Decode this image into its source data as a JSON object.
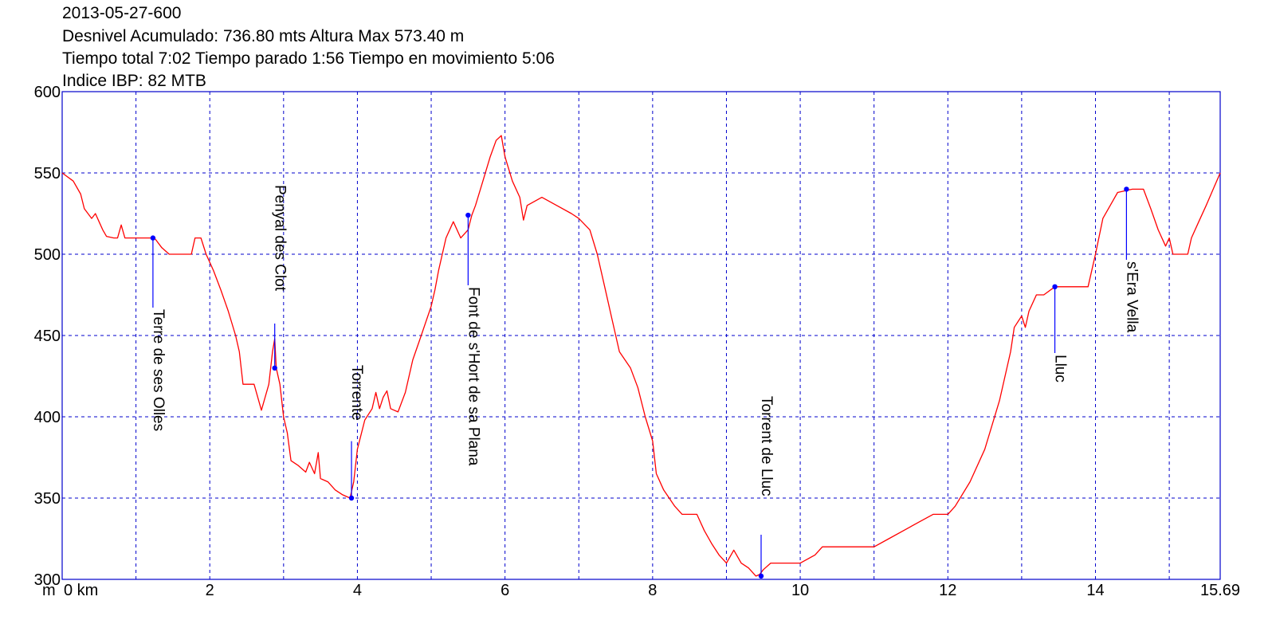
{
  "header": {
    "line1": "2013-05-27-600",
    "line2": "Desnivel Acumulado: 736.80 mts  Altura Max 573.40 m",
    "line3": "Tiempo total 7:02 Tiempo parado 1:56 Tiempo en movimiento 5:06",
    "line4": "Indice IBP: 82 MTB"
  },
  "colors": {
    "frame": "#0000cc",
    "grid": "#0000cc",
    "profile": "#ff0000",
    "marker": "#0000ff"
  },
  "chart_data": {
    "type": "line",
    "title": "",
    "xlabel": "km",
    "ylabel": "m",
    "xlim": [
      0,
      15.69
    ],
    "ylim": [
      300,
      600
    ],
    "x_ticks": [
      {
        "v": 0,
        "label": "0 km"
      },
      {
        "v": 2,
        "label": "2"
      },
      {
        "v": 4,
        "label": "4"
      },
      {
        "v": 6,
        "label": "6"
      },
      {
        "v": 8,
        "label": "8"
      },
      {
        "v": 10,
        "label": "10"
      },
      {
        "v": 12,
        "label": "12"
      },
      {
        "v": 14,
        "label": "14"
      },
      {
        "v": 15.69,
        "label": "15.69"
      }
    ],
    "y_ticks": [
      {
        "v": 300,
        "label": "300"
      },
      {
        "v": 350,
        "label": "350"
      },
      {
        "v": 400,
        "label": "400"
      },
      {
        "v": 450,
        "label": "450"
      },
      {
        "v": 500,
        "label": "500"
      },
      {
        "v": 550,
        "label": "550"
      },
      {
        "v": 600,
        "label": "600"
      }
    ],
    "x_grid": [
      1,
      2,
      3,
      4,
      5,
      6,
      7,
      8,
      9,
      10,
      11,
      12,
      13,
      14,
      15
    ],
    "y_grid": [
      350,
      400,
      450,
      500,
      550
    ],
    "grid": true,
    "series": [
      {
        "values": [
          [
            0.0,
            550
          ],
          [
            0.15,
            545
          ],
          [
            0.25,
            537
          ],
          [
            0.3,
            528
          ],
          [
            0.4,
            522
          ],
          [
            0.45,
            525
          ],
          [
            0.5,
            520
          ],
          [
            0.55,
            515
          ],
          [
            0.6,
            511
          ],
          [
            0.7,
            510
          ],
          [
            0.75,
            510
          ],
          [
            0.8,
            518
          ],
          [
            0.85,
            510
          ],
          [
            1.0,
            510
          ],
          [
            1.25,
            510
          ],
          [
            1.35,
            504
          ],
          [
            1.45,
            500
          ],
          [
            1.75,
            500
          ],
          [
            1.8,
            510
          ],
          [
            1.88,
            510
          ],
          [
            1.95,
            500
          ],
          [
            2.05,
            490
          ],
          [
            2.15,
            478
          ],
          [
            2.25,
            465
          ],
          [
            2.35,
            450
          ],
          [
            2.4,
            440
          ],
          [
            2.45,
            420
          ],
          [
            2.6,
            420
          ],
          [
            2.7,
            404
          ],
          [
            2.8,
            420
          ],
          [
            2.85,
            440
          ],
          [
            2.88,
            448
          ],
          [
            2.9,
            430
          ],
          [
            2.95,
            420
          ],
          [
            3.0,
            400
          ],
          [
            3.05,
            390
          ],
          [
            3.1,
            373
          ],
          [
            3.2,
            370
          ],
          [
            3.3,
            366
          ],
          [
            3.35,
            372
          ],
          [
            3.42,
            365
          ],
          [
            3.47,
            378
          ],
          [
            3.5,
            362
          ],
          [
            3.6,
            360
          ],
          [
            3.7,
            355
          ],
          [
            3.8,
            352
          ],
          [
            3.9,
            350
          ],
          [
            3.95,
            360
          ],
          [
            4.0,
            380
          ],
          [
            4.1,
            398
          ],
          [
            4.2,
            405
          ],
          [
            4.25,
            415
          ],
          [
            4.3,
            405
          ],
          [
            4.35,
            412
          ],
          [
            4.4,
            416
          ],
          [
            4.45,
            405
          ],
          [
            4.55,
            403
          ],
          [
            4.65,
            415
          ],
          [
            4.75,
            435
          ],
          [
            4.85,
            448
          ],
          [
            5.0,
            468
          ],
          [
            5.05,
            478
          ],
          [
            5.1,
            490
          ],
          [
            5.2,
            510
          ],
          [
            5.3,
            520
          ],
          [
            5.4,
            510
          ],
          [
            5.5,
            515
          ],
          [
            5.55,
            524
          ],
          [
            5.6,
            530
          ],
          [
            5.7,
            545
          ],
          [
            5.8,
            560
          ],
          [
            5.88,
            570
          ],
          [
            5.95,
            573
          ],
          [
            6.0,
            560
          ],
          [
            6.1,
            545
          ],
          [
            6.2,
            535
          ],
          [
            6.25,
            521
          ],
          [
            6.3,
            530
          ],
          [
            6.5,
            535
          ],
          [
            6.7,
            530
          ],
          [
            6.9,
            525
          ],
          [
            7.0,
            522
          ],
          [
            7.15,
            515
          ],
          [
            7.25,
            500
          ],
          [
            7.35,
            480
          ],
          [
            7.45,
            460
          ],
          [
            7.55,
            440
          ],
          [
            7.7,
            430
          ],
          [
            7.8,
            418
          ],
          [
            7.9,
            400
          ],
          [
            8.0,
            385
          ],
          [
            8.05,
            365
          ],
          [
            8.15,
            355
          ],
          [
            8.3,
            345
          ],
          [
            8.4,
            340
          ],
          [
            8.5,
            340
          ],
          [
            8.6,
            340
          ],
          [
            8.7,
            330
          ],
          [
            8.8,
            322
          ],
          [
            8.9,
            315
          ],
          [
            9.0,
            310
          ],
          [
            9.1,
            318
          ],
          [
            9.2,
            310
          ],
          [
            9.3,
            307
          ],
          [
            9.4,
            302
          ],
          [
            9.45,
            303
          ],
          [
            9.5,
            306
          ],
          [
            9.6,
            310
          ],
          [
            10.0,
            310
          ],
          [
            10.2,
            315
          ],
          [
            10.3,
            320
          ],
          [
            10.6,
            320
          ],
          [
            11.0,
            320
          ],
          [
            11.2,
            325
          ],
          [
            11.4,
            330
          ],
          [
            11.6,
            335
          ],
          [
            11.8,
            340
          ],
          [
            12.0,
            340
          ],
          [
            12.1,
            345
          ],
          [
            12.3,
            360
          ],
          [
            12.5,
            380
          ],
          [
            12.7,
            410
          ],
          [
            12.85,
            440
          ],
          [
            12.9,
            455
          ],
          [
            13.0,
            462
          ],
          [
            13.05,
            455
          ],
          [
            13.1,
            465
          ],
          [
            13.2,
            475
          ],
          [
            13.3,
            475
          ],
          [
            13.45,
            480
          ],
          [
            13.6,
            480
          ],
          [
            13.9,
            480
          ],
          [
            14.0,
            500
          ],
          [
            14.1,
            522
          ],
          [
            14.3,
            538
          ],
          [
            14.5,
            540
          ],
          [
            14.65,
            540
          ],
          [
            14.75,
            528
          ],
          [
            14.85,
            515
          ],
          [
            14.95,
            505
          ],
          [
            15.0,
            510
          ],
          [
            15.05,
            500
          ],
          [
            15.25,
            500
          ],
          [
            15.3,
            510
          ],
          [
            15.4,
            520
          ],
          [
            15.5,
            530
          ],
          [
            15.69,
            550
          ]
        ]
      }
    ],
    "waypoints": [
      {
        "label": "Terre de ses Olles",
        "x": 1.23,
        "y": 510
      },
      {
        "label": "Penyal des Clot",
        "x": 2.88,
        "y": 430
      },
      {
        "label": "Torrente",
        "x": 3.92,
        "y": 350
      },
      {
        "label": "Font de s'Hort de sa Plana",
        "x": 5.5,
        "y": 524
      },
      {
        "label": "Torrent de Lluc",
        "x": 9.47,
        "y": 302
      },
      {
        "label": "Lluc",
        "x": 13.45,
        "y": 480
      },
      {
        "label": "s'Era Vella",
        "x": 14.42,
        "y": 540
      }
    ]
  }
}
